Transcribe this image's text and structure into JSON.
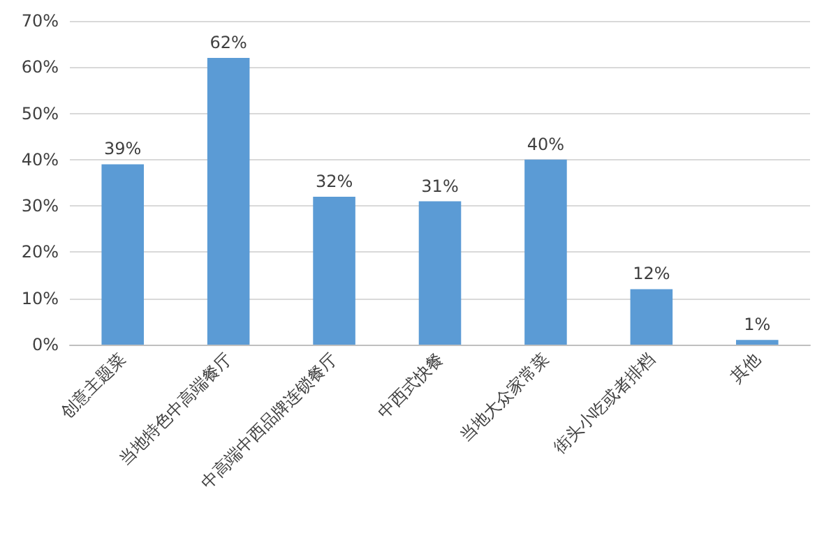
{
  "chart_data": {
    "type": "bar",
    "categories": [
      "创意主题菜",
      "当地特色中高端餐厅",
      "中高端中西品牌连锁餐厅",
      "中西式快餐",
      "当地大众家常菜",
      "街头小吃或者排档",
      "其他"
    ],
    "values": [
      39,
      62,
      32,
      31,
      40,
      12,
      1
    ],
    "color": "#5b9bd5",
    "value_labels": [
      "39%",
      "62%",
      "32%",
      "31%",
      "40%",
      "12%",
      "1%"
    ],
    "ylim": [
      0,
      70
    ],
    "yticks": [
      {
        "value": 0,
        "label": "0%"
      },
      {
        "value": 10,
        "label": "10%"
      },
      {
        "value": 20,
        "label": "20%"
      },
      {
        "value": 30,
        "label": "30%"
      },
      {
        "value": 40,
        "label": "40%"
      },
      {
        "value": 50,
        "label": "50%"
      },
      {
        "value": 60,
        "label": "60%"
      },
      {
        "value": 70,
        "label": "70%"
      }
    ],
    "grid": "y"
  }
}
